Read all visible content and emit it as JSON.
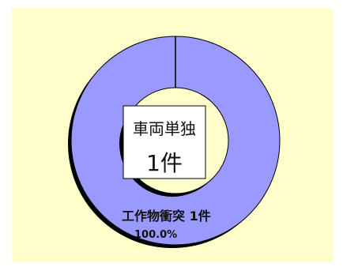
{
  "chart_data": {
    "type": "pie",
    "style": "donut",
    "center_label": {
      "category": "車両単独",
      "count": "1件"
    },
    "slices": [
      {
        "label": "工作物衝突 1件",
        "value": 1,
        "percent_label": "100.0%"
      }
    ],
    "colors": {
      "background": "#ffffcc",
      "slice": "#9999ff",
      "outline": "#000000",
      "shadow": "#000000",
      "center_box": "#ffffff"
    }
  }
}
